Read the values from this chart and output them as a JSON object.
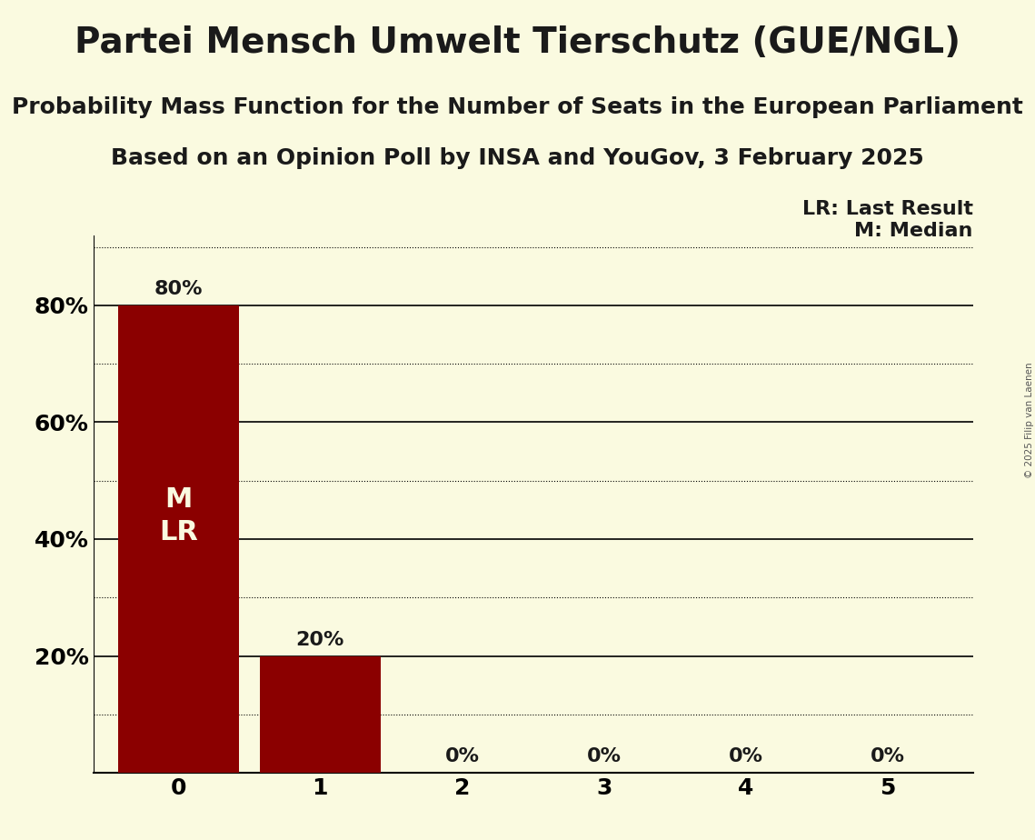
{
  "title": "Partei Mensch Umwelt Tierschutz (GUE/NGL)",
  "subtitle1": "Probability Mass Function for the Number of Seats in the European Parliament",
  "subtitle2": "Based on an Opinion Poll by INSA and YouGov, 3 February 2025",
  "copyright": "© 2025 Filip van Laenen",
  "seats": [
    0,
    1,
    2,
    3,
    4,
    5
  ],
  "probabilities": [
    0.8,
    0.2,
    0.0,
    0.0,
    0.0,
    0.0
  ],
  "bar_color": "#8B0000",
  "bar_labels": [
    "80%",
    "20%",
    "0%",
    "0%",
    "0%",
    "0%"
  ],
  "median_seat": 0,
  "last_result_seat": 0,
  "background_color": "#FAFAE0",
  "text_color": "#1a1a1a",
  "yticks": [
    0.2,
    0.4,
    0.6,
    0.8
  ],
  "ytick_labels": [
    "20%",
    "40%",
    "60%",
    "80%"
  ],
  "solid_lines": [
    0.2,
    0.4,
    0.6,
    0.8
  ],
  "dotted_lines": [
    0.1,
    0.3,
    0.5,
    0.7,
    0.9
  ],
  "legend_lr": "LR: Last Result",
  "legend_m": "M: Median",
  "title_fontsize": 28,
  "subtitle_fontsize": 18,
  "label_fontsize": 16,
  "tick_fontsize": 18,
  "ml_fontsize": 22
}
